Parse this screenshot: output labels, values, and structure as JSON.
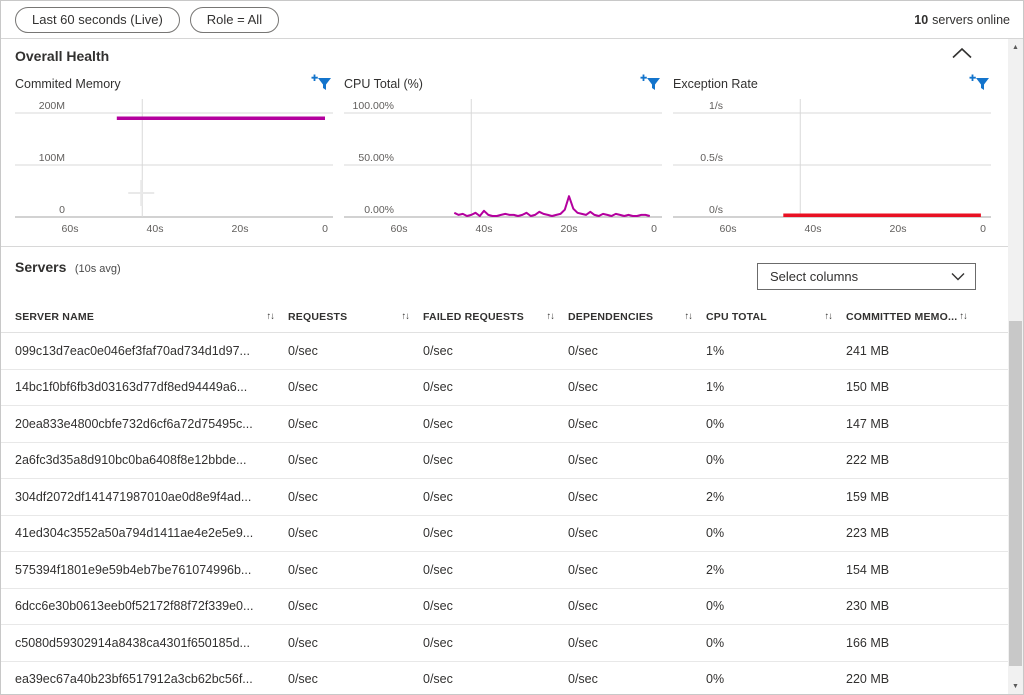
{
  "toolbar": {
    "time_pill": "Last 60 seconds (Live)",
    "role_pill": "Role = All",
    "servers_online_count": "10",
    "servers_online_label": "servers online"
  },
  "overall_health": {
    "title": "Overall Health"
  },
  "chart_data": [
    {
      "type": "line",
      "title": "Commited Memory",
      "y_tick_labels": [
        "200M",
        "100M",
        "0"
      ],
      "y_max": 200,
      "x_tick_labels": [
        "60s",
        "40s",
        "20s",
        "0"
      ],
      "x_tick_seconds": [
        60,
        40,
        20,
        0
      ],
      "x_domain_seconds": [
        73,
        -2
      ],
      "grid": "horizontal+one-vertical",
      "hover_marker_t": 43,
      "series": [
        {
          "name": "committed-memory-avg",
          "color": "#b4009e",
          "stroke_width": 3.5,
          "points": [
            [
              49,
              190
            ],
            [
              40,
              190
            ],
            [
              30,
              190
            ],
            [
              20,
              190
            ],
            [
              10,
              190
            ],
            [
              0,
              190
            ]
          ]
        }
      ]
    },
    {
      "type": "line",
      "title": "CPU Total (%)",
      "y_tick_labels": [
        "100.00%",
        "50.00%",
        "0.00%"
      ],
      "y_max": 100,
      "x_tick_labels": [
        "60s",
        "40s",
        "20s",
        "0"
      ],
      "x_tick_seconds": [
        60,
        40,
        20,
        0
      ],
      "x_domain_seconds": [
        73,
        -2
      ],
      "grid": "horizontal+one-vertical",
      "series": [
        {
          "name": "cpu-total-avg",
          "color": "#b4009e",
          "stroke_width": 2,
          "points": [
            [
              47,
              4
            ],
            [
              46,
              2
            ],
            [
              45,
              3
            ],
            [
              44,
              1
            ],
            [
              43,
              2
            ],
            [
              42,
              4
            ],
            [
              41,
              1
            ],
            [
              40,
              6
            ],
            [
              39,
              2
            ],
            [
              38,
              1
            ],
            [
              37,
              1
            ],
            [
              36,
              2
            ],
            [
              35,
              3
            ],
            [
              34,
              2
            ],
            [
              33,
              2
            ],
            [
              32,
              1
            ],
            [
              31,
              2
            ],
            [
              30,
              4
            ],
            [
              29,
              1
            ],
            [
              28,
              2
            ],
            [
              27,
              5
            ],
            [
              26,
              3
            ],
            [
              25,
              2
            ],
            [
              24,
              1
            ],
            [
              23,
              2
            ],
            [
              22,
              3
            ],
            [
              21,
              7
            ],
            [
              20,
              20
            ],
            [
              19,
              8
            ],
            [
              18,
              4
            ],
            [
              17,
              3
            ],
            [
              16,
              2
            ],
            [
              15,
              5
            ],
            [
              14,
              2
            ],
            [
              13,
              1
            ],
            [
              12,
              3
            ],
            [
              11,
              2
            ],
            [
              10,
              1
            ],
            [
              9,
              3
            ],
            [
              8,
              2
            ],
            [
              7,
              1
            ],
            [
              6,
              2
            ],
            [
              5,
              1
            ],
            [
              4,
              1
            ],
            [
              3,
              2
            ],
            [
              2,
              2
            ],
            [
              1,
              1
            ]
          ]
        }
      ]
    },
    {
      "type": "line",
      "title": "Exception Rate",
      "y_tick_labels": [
        "1/s",
        "0.5/s",
        "0/s"
      ],
      "y_max": 1,
      "x_tick_labels": [
        "60s",
        "40s",
        "20s",
        "0"
      ],
      "x_tick_seconds": [
        60,
        40,
        20,
        0
      ],
      "x_domain_seconds": [
        73,
        -2
      ],
      "grid": "horizontal+one-vertical",
      "series": [
        {
          "name": "exception-rate",
          "color": "#e81123",
          "stroke_width": 3.5,
          "points": [
            [
              47,
              0
            ],
            [
              30,
              0
            ],
            [
              15,
              0
            ],
            [
              0.5,
              0
            ]
          ]
        }
      ]
    }
  ],
  "servers_table": {
    "title": "Servers",
    "subtitle": "(10s avg)",
    "select_columns_label": "Select columns",
    "columns": [
      "SERVER NAME",
      "REQUESTS",
      "FAILED REQUESTS",
      "DEPENDENCIES",
      "CPU TOTAL",
      "COMMITTED MEMO..."
    ],
    "rows": [
      [
        "099c13d7eac0e046ef3faf70ad734d1d97...",
        "0/sec",
        "0/sec",
        "0/sec",
        "1%",
        "241 MB"
      ],
      [
        "14bc1f0bf6fb3d03163d77df8ed94449a6...",
        "0/sec",
        "0/sec",
        "0/sec",
        "1%",
        "150 MB"
      ],
      [
        "20ea833e4800cbfe732d6cf6a72d75495c...",
        "0/sec",
        "0/sec",
        "0/sec",
        "0%",
        "147 MB"
      ],
      [
        "2a6fc3d35a8d910bc0ba6408f8e12bbde...",
        "0/sec",
        "0/sec",
        "0/sec",
        "0%",
        "222 MB"
      ],
      [
        "304df2072df141471987010ae0d8e9f4ad...",
        "0/sec",
        "0/sec",
        "0/sec",
        "2%",
        "159 MB"
      ],
      [
        "41ed304c3552a50a794d1411ae4e2e5e9...",
        "0/sec",
        "0/sec",
        "0/sec",
        "0%",
        "223 MB"
      ],
      [
        "575394f1801e9e59b4eb7be761074996b...",
        "0/sec",
        "0/sec",
        "0/sec",
        "2%",
        "154 MB"
      ],
      [
        "6dcc6e30b0613eeb0f52172f88f72f339e0...",
        "0/sec",
        "0/sec",
        "0/sec",
        "0%",
        "230 MB"
      ],
      [
        "c5080d59302914a8438ca4301f650185d...",
        "0/sec",
        "0/sec",
        "0/sec",
        "0%",
        "166 MB"
      ],
      [
        "ea39ec67a40b23bf6517912a3cb62bc56f...",
        "0/sec",
        "0/sec",
        "0/sec",
        "0%",
        "220 MB"
      ]
    ]
  },
  "icons": {
    "add_filter": "add-filter-funnel",
    "collapse": "chevron-up",
    "dropdown": "chevron-down",
    "sort": "up-down-arrows"
  },
  "colors": {
    "series_magenta": "#b4009e",
    "series_red": "#e81123",
    "filter_blue": "#1374cc",
    "grid_line": "#d8d8d8",
    "axis_line": "#a6a6a6",
    "tick_text": "#605e5c"
  }
}
